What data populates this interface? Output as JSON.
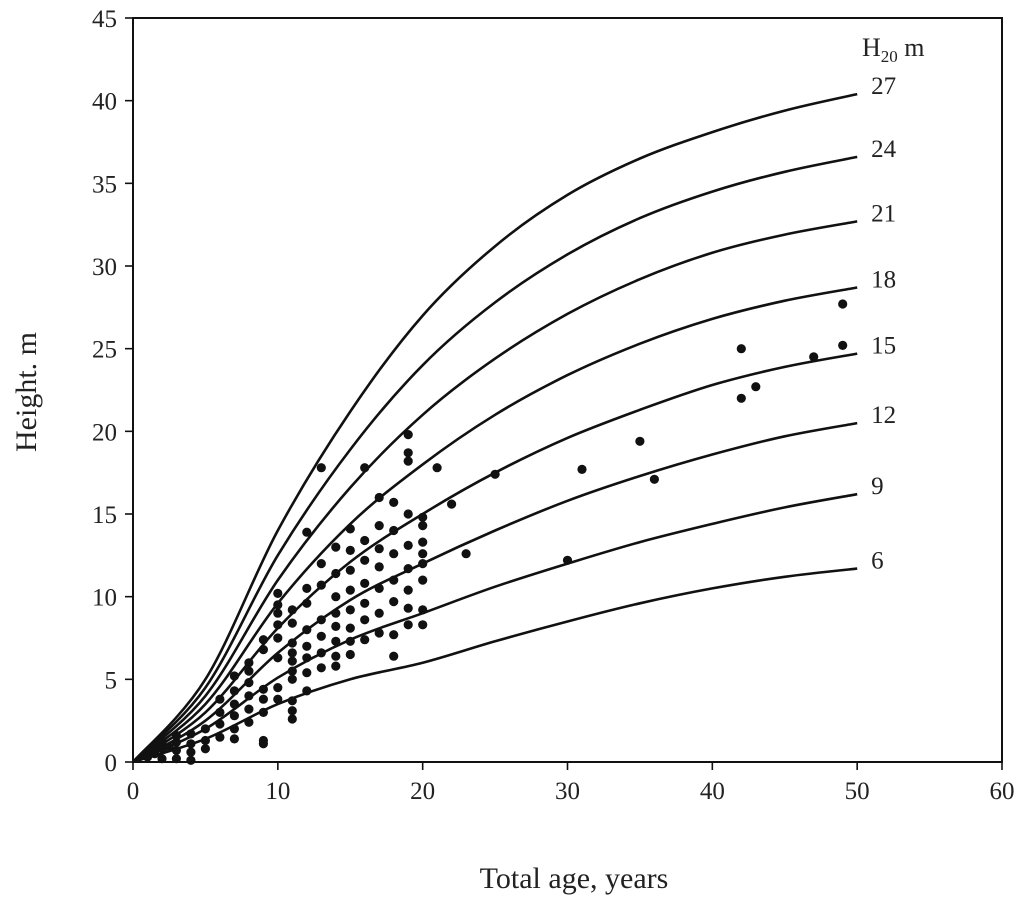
{
  "chart_data": {
    "type": "line",
    "xlabel": "Total age, years",
    "ylabel": "Height. m",
    "xlim": [
      0,
      60
    ],
    "ylim": [
      0,
      45
    ],
    "xticks": [
      "0",
      "10",
      "20",
      "30",
      "40",
      "50",
      "60"
    ],
    "yticks": [
      "0",
      "5",
      "10",
      "15",
      "20",
      "25",
      "30",
      "35",
      "40",
      "45"
    ],
    "grid": false,
    "legend": {
      "title_main": "H",
      "title_sub": "20",
      "title_unit": " m",
      "placement": "top-right"
    },
    "x": [
      0,
      5,
      10,
      15,
      20,
      25,
      30,
      35,
      40,
      45,
      50
    ],
    "series": [
      {
        "name": "27",
        "values": [
          0,
          5.0,
          14.0,
          21.2,
          27.0,
          31.2,
          34.3,
          36.5,
          38.1,
          39.4,
          40.4
        ]
      },
      {
        "name": "24",
        "values": [
          0,
          4.5,
          12.5,
          18.9,
          24.0,
          27.8,
          30.7,
          32.9,
          34.5,
          35.7,
          36.6
        ]
      },
      {
        "name": "21",
        "values": [
          0,
          4.0,
          11.0,
          16.6,
          21.0,
          24.4,
          27.1,
          29.2,
          30.8,
          31.9,
          32.7
        ]
      },
      {
        "name": "18",
        "values": [
          0,
          3.5,
          9.6,
          14.4,
          18.0,
          21.0,
          23.4,
          25.3,
          26.8,
          27.9,
          28.7
        ]
      },
      {
        "name": "15",
        "values": [
          0,
          3.0,
          8.1,
          12.1,
          15.0,
          17.5,
          19.6,
          21.3,
          22.8,
          23.9,
          24.7
        ]
      },
      {
        "name": "12",
        "values": [
          0,
          2.5,
          6.6,
          9.8,
          12.0,
          14.0,
          15.8,
          17.3,
          18.6,
          19.7,
          20.5
        ]
      },
      {
        "name": "9",
        "values": [
          0,
          2.0,
          5.1,
          7.4,
          9.0,
          10.6,
          12.0,
          13.3,
          14.4,
          15.4,
          16.2
        ]
      },
      {
        "name": "6",
        "values": [
          0,
          1.4,
          3.5,
          5.0,
          6.0,
          7.3,
          8.5,
          9.6,
          10.5,
          11.2,
          11.7
        ]
      }
    ],
    "points": [
      [
        1,
        0.3
      ],
      [
        1.5,
        0.5
      ],
      [
        2,
        0.2
      ],
      [
        2,
        0.8
      ],
      [
        2,
        1.2
      ],
      [
        2.5,
        0.9
      ],
      [
        3,
        0.2
      ],
      [
        3,
        0.7
      ],
      [
        3,
        1.2
      ],
      [
        3,
        1.6
      ],
      [
        4,
        0.1
      ],
      [
        4,
        0.6
      ],
      [
        4,
        1.1
      ],
      [
        4,
        1.7
      ],
      [
        5,
        0.8
      ],
      [
        5,
        1.3
      ],
      [
        5,
        2.0
      ],
      [
        6,
        1.5
      ],
      [
        6,
        2.3
      ],
      [
        6,
        3.0
      ],
      [
        6,
        3.8
      ],
      [
        7,
        1.4
      ],
      [
        7,
        2.0
      ],
      [
        7,
        2.8
      ],
      [
        7,
        3.5
      ],
      [
        7,
        4.3
      ],
      [
        7,
        5.2
      ],
      [
        8,
        2.4
      ],
      [
        8,
        3.2
      ],
      [
        8,
        4.0
      ],
      [
        8,
        4.8
      ],
      [
        8,
        5.5
      ],
      [
        8,
        6.0
      ],
      [
        9,
        1.1
      ],
      [
        9,
        1.3
      ],
      [
        9,
        3.0
      ],
      [
        9,
        3.8
      ],
      [
        9,
        4.4
      ],
      [
        9,
        6.8
      ],
      [
        9,
        7.4
      ],
      [
        10,
        3.8
      ],
      [
        10,
        4.5
      ],
      [
        10,
        6.3
      ],
      [
        10,
        7.5
      ],
      [
        10,
        8.3
      ],
      [
        10,
        9.0
      ],
      [
        10,
        9.5
      ],
      [
        10,
        10.2
      ],
      [
        11,
        2.6
      ],
      [
        11,
        3.1
      ],
      [
        11,
        3.7
      ],
      [
        11,
        5.0
      ],
      [
        11,
        5.5
      ],
      [
        11,
        6.1
      ],
      [
        11,
        6.6
      ],
      [
        11,
        7.2
      ],
      [
        11,
        8.4
      ],
      [
        11,
        9.2
      ],
      [
        12,
        4.3
      ],
      [
        12,
        5.4
      ],
      [
        12,
        6.3
      ],
      [
        12,
        7.0
      ],
      [
        12,
        8.0
      ],
      [
        12,
        9.6
      ],
      [
        12,
        10.5
      ],
      [
        12,
        13.9
      ],
      [
        13,
        5.7
      ],
      [
        13,
        6.6
      ],
      [
        13,
        7.6
      ],
      [
        13,
        8.6
      ],
      [
        13,
        10.7
      ],
      [
        13,
        12.0
      ],
      [
        13,
        17.8
      ],
      [
        14,
        5.8
      ],
      [
        14,
        6.4
      ],
      [
        14,
        7.3
      ],
      [
        14,
        8.2
      ],
      [
        14,
        9.0
      ],
      [
        14,
        10.0
      ],
      [
        14,
        11.4
      ],
      [
        14,
        13.0
      ],
      [
        15,
        6.5
      ],
      [
        15,
        7.3
      ],
      [
        15,
        8.1
      ],
      [
        15,
        9.2
      ],
      [
        15,
        10.4
      ],
      [
        15,
        11.6
      ],
      [
        15,
        12.8
      ],
      [
        15,
        14.1
      ],
      [
        16,
        7.4
      ],
      [
        16,
        8.6
      ],
      [
        16,
        9.6
      ],
      [
        16,
        10.8
      ],
      [
        16,
        12.2
      ],
      [
        16,
        13.4
      ],
      [
        16,
        17.8
      ],
      [
        17,
        7.8
      ],
      [
        17,
        9.0
      ],
      [
        17,
        10.5
      ],
      [
        17,
        11.8
      ],
      [
        17,
        12.9
      ],
      [
        17,
        14.3
      ],
      [
        17,
        16.0
      ],
      [
        18,
        6.4
      ],
      [
        18,
        7.7
      ],
      [
        18,
        9.7
      ],
      [
        18,
        11.0
      ],
      [
        18,
        12.6
      ],
      [
        18,
        14.0
      ],
      [
        18,
        15.7
      ],
      [
        19,
        8.3
      ],
      [
        19,
        9.3
      ],
      [
        19,
        10.4
      ],
      [
        19,
        11.7
      ],
      [
        19,
        13.1
      ],
      [
        19,
        15.0
      ],
      [
        19,
        18.2
      ],
      [
        19,
        18.7
      ],
      [
        19,
        19.8
      ],
      [
        20,
        8.3
      ],
      [
        20,
        9.2
      ],
      [
        20,
        11.0
      ],
      [
        20,
        12.0
      ],
      [
        20,
        12.6
      ],
      [
        20,
        13.3
      ],
      [
        20,
        14.3
      ],
      [
        20,
        14.8
      ],
      [
        21,
        17.8
      ],
      [
        22,
        15.6
      ],
      [
        23,
        12.6
      ],
      [
        25,
        17.4
      ],
      [
        30,
        12.2
      ],
      [
        31,
        17.7
      ],
      [
        35,
        19.4
      ],
      [
        36,
        17.1
      ],
      [
        42,
        25.0
      ],
      [
        42,
        22.0
      ],
      [
        43,
        22.7
      ],
      [
        47,
        24.5
      ],
      [
        49,
        27.7
      ],
      [
        49,
        25.2
      ]
    ]
  }
}
